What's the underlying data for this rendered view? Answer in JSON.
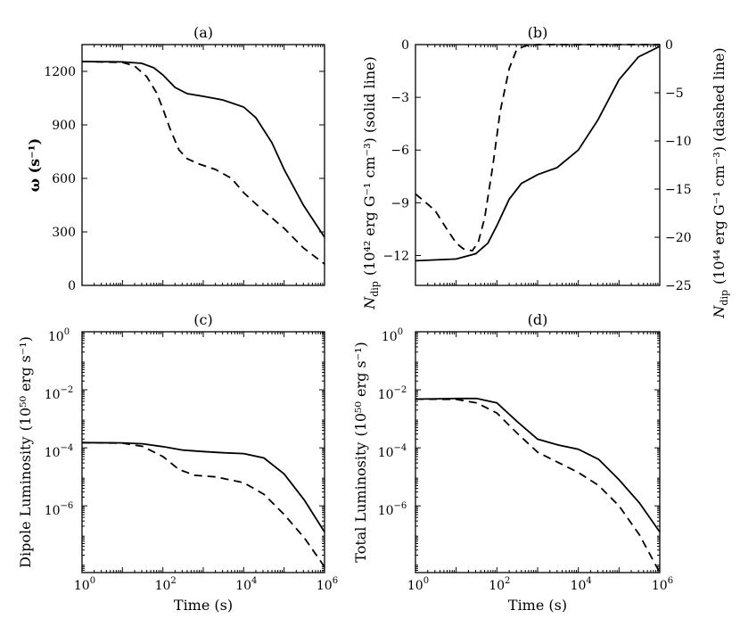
{
  "chart_data": [
    {
      "id": "a",
      "type": "line",
      "title": "(a)",
      "xscale": "log",
      "xlim": [
        1,
        1000000
      ],
      "ylim": [
        0,
        1350
      ],
      "yticks": [
        0,
        300,
        600,
        900,
        1200
      ],
      "ytick_labels": [
        "0",
        "300",
        "600",
        "900",
        "1200"
      ],
      "xticks": [],
      "xtick_labels": [],
      "xlabel": "",
      "ylabel": "ω (s⁻¹)",
      "series": [
        {
          "name": "solid",
          "style": "solid",
          "points": [
            [
              1,
              1255
            ],
            [
              10,
              1253
            ],
            [
              30,
              1245
            ],
            [
              60,
              1220
            ],
            [
              100,
              1180
            ],
            [
              200,
              1110
            ],
            [
              400,
              1075
            ],
            [
              1000,
              1060
            ],
            [
              3000,
              1040
            ],
            [
              10000,
              1000
            ],
            [
              20000,
              940
            ],
            [
              50000,
              800
            ],
            [
              100000,
              650
            ],
            [
              300000,
              450
            ],
            [
              1000000,
              270
            ]
          ]
        },
        {
          "name": "dashed",
          "style": "dashed",
          "points": [
            [
              1,
              1255
            ],
            [
              10,
              1250
            ],
            [
              20,
              1230
            ],
            [
              40,
              1170
            ],
            [
              70,
              1080
            ],
            [
              100,
              990
            ],
            [
              150,
              880
            ],
            [
              250,
              760
            ],
            [
              400,
              710
            ],
            [
              800,
              680
            ],
            [
              2000,
              650
            ],
            [
              5000,
              600
            ],
            [
              10000,
              520
            ],
            [
              30000,
              420
            ],
            [
              100000,
              320
            ],
            [
              300000,
              210
            ],
            [
              1000000,
              120
            ]
          ]
        }
      ]
    },
    {
      "id": "b",
      "type": "line",
      "title": "(b)",
      "xscale": "log",
      "xlim": [
        1,
        1000000
      ],
      "ylim": [
        -13.7,
        0
      ],
      "yticks": [
        -12,
        -9,
        -6,
        -3,
        0
      ],
      "ytick_labels": [
        "−12",
        "−9",
        "−6",
        "−3",
        "0"
      ],
      "y2lim": [
        -25,
        0
      ],
      "y2ticks": [
        -25,
        -20,
        -15,
        -10,
        -5,
        0
      ],
      "y2tick_labels": [
        "−25",
        "−20",
        "−15",
        "−10",
        "−5",
        "0"
      ],
      "xticks": [],
      "xtick_labels": [],
      "xlabel": "",
      "ylabel_symbol": "N",
      "ylabel_sub": "dip",
      "ylabel_text": "(10⁴² erg G⁻¹ cm⁻³) (solid line)",
      "y2label_symbol": "N",
      "y2label_sub": "dip",
      "y2label_text": "(10⁴⁴ erg G⁻¹ cm⁻³) (dashed line)",
      "series": [
        {
          "name": "solid",
          "style": "solid",
          "axis": "left",
          "points": [
            [
              1,
              -12.3
            ],
            [
              10,
              -12.2
            ],
            [
              30,
              -11.9
            ],
            [
              60,
              -11.3
            ],
            [
              100,
              -10.3
            ],
            [
              200,
              -8.8
            ],
            [
              400,
              -7.9
            ],
            [
              1000,
              -7.4
            ],
            [
              3000,
              -7.0
            ],
            [
              10000,
              -6.0
            ],
            [
              30000,
              -4.3
            ],
            [
              100000,
              -2.0
            ],
            [
              300000,
              -0.7
            ],
            [
              1000000,
              -0.1
            ]
          ]
        },
        {
          "name": "dashed",
          "style": "dashed",
          "axis": "right",
          "points": [
            [
              1,
              -15.5
            ],
            [
              3,
              -17.2
            ],
            [
              6,
              -19.2
            ],
            [
              10,
              -20.6
            ],
            [
              15,
              -21.2
            ],
            [
              25,
              -21.4
            ],
            [
              35,
              -20.5
            ],
            [
              50,
              -18
            ],
            [
              80,
              -12.5
            ],
            [
              120,
              -7
            ],
            [
              200,
              -2.5
            ],
            [
              300,
              -0.6
            ],
            [
              500,
              -0.1
            ],
            [
              1000,
              0
            ],
            [
              1000000,
              0
            ]
          ]
        }
      ]
    },
    {
      "id": "c",
      "type": "line",
      "title": "(c)",
      "xscale": "log",
      "yscale": "log",
      "xlim": [
        1,
        1000000
      ],
      "ylim_log10": [
        -8.3,
        0
      ],
      "yticks_log10": [
        -6,
        -4,
        -2,
        0
      ],
      "ytick_labels": [
        [
          "10",
          "−6"
        ],
        [
          "10",
          "−4"
        ],
        [
          "10",
          "−2"
        ],
        [
          "10",
          "0"
        ]
      ],
      "xticks_log10": [
        0,
        2,
        4,
        6
      ],
      "xtick_labels": [
        [
          "10",
          "0"
        ],
        [
          "10",
          "2"
        ],
        [
          "10",
          "4"
        ],
        [
          "10",
          "6"
        ]
      ],
      "xlabel": "Time (s)",
      "ylabel_text": "Dipole Luminosity",
      "ylabel_unit": "(10⁵⁰ erg s⁻¹)",
      "series": [
        {
          "name": "solid",
          "style": "solid",
          "log10_points": [
            [
              0,
              -3.82
            ],
            [
              1,
              -3.83
            ],
            [
              1.5,
              -3.86
            ],
            [
              2,
              -3.96
            ],
            [
              2.5,
              -4.08
            ],
            [
              3,
              -4.13
            ],
            [
              3.5,
              -4.17
            ],
            [
              4,
              -4.2
            ],
            [
              4.5,
              -4.35
            ],
            [
              5,
              -4.9
            ],
            [
              5.5,
              -5.8
            ],
            [
              6,
              -6.9
            ]
          ]
        },
        {
          "name": "dashed",
          "style": "dashed",
          "log10_points": [
            [
              0,
              -3.82
            ],
            [
              1,
              -3.84
            ],
            [
              1.5,
              -3.95
            ],
            [
              2,
              -4.3
            ],
            [
              2.4,
              -4.75
            ],
            [
              2.8,
              -4.95
            ],
            [
              3.3,
              -5.0
            ],
            [
              4,
              -5.2
            ],
            [
              4.5,
              -5.6
            ],
            [
              5,
              -6.3
            ],
            [
              5.5,
              -7.1
            ],
            [
              6,
              -8.1
            ]
          ]
        }
      ]
    },
    {
      "id": "d",
      "type": "line",
      "title": "(d)",
      "xscale": "log",
      "yscale": "log",
      "xlim": [
        1,
        1000000
      ],
      "ylim_log10": [
        -8.3,
        0
      ],
      "yticks_log10": [
        -6,
        -4,
        -2,
        0
      ],
      "ytick_labels": [
        [
          "10",
          "−6"
        ],
        [
          "10",
          "−4"
        ],
        [
          "10",
          "−2"
        ],
        [
          "10",
          "0"
        ]
      ],
      "xticks_log10": [
        0,
        2,
        4,
        6
      ],
      "xtick_labels": [
        [
          "10",
          "0"
        ],
        [
          "10",
          "2"
        ],
        [
          "10",
          "4"
        ],
        [
          "10",
          "6"
        ]
      ],
      "xlabel": "Time (s)",
      "ylabel_text": "Total Luminosity",
      "ylabel_unit": "(10⁵⁰ erg s⁻¹)",
      "series": [
        {
          "name": "solid",
          "style": "solid",
          "log10_points": [
            [
              0,
              -2.32
            ],
            [
              1,
              -2.3
            ],
            [
              1.5,
              -2.3
            ],
            [
              2,
              -2.45
            ],
            [
              2.5,
              -3.1
            ],
            [
              3,
              -3.7
            ],
            [
              3.5,
              -3.9
            ],
            [
              4,
              -4.05
            ],
            [
              4.5,
              -4.4
            ],
            [
              5,
              -5.1
            ],
            [
              5.5,
              -5.9
            ],
            [
              6,
              -6.9
            ]
          ]
        },
        {
          "name": "dashed",
          "style": "dashed",
          "log10_points": [
            [
              0,
              -2.32
            ],
            [
              1,
              -2.33
            ],
            [
              1.5,
              -2.45
            ],
            [
              2,
              -2.8
            ],
            [
              2.5,
              -3.5
            ],
            [
              3,
              -4.15
            ],
            [
              3.5,
              -4.5
            ],
            [
              4,
              -4.85
            ],
            [
              4.5,
              -5.3
            ],
            [
              5,
              -6.0
            ],
            [
              5.5,
              -7.0
            ],
            [
              6,
              -8.3
            ]
          ]
        }
      ]
    }
  ]
}
